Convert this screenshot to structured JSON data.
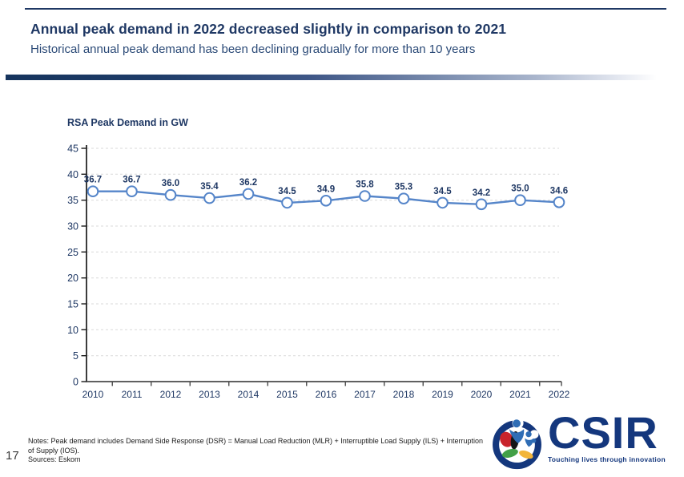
{
  "slide": {
    "title": "Annual peak demand in 2022 decreased slightly in comparison to 2021",
    "subtitle": "Historical annual peak demand has been declining gradually for more than 10 years",
    "page_number": "17"
  },
  "footer": {
    "notes_lines": [
      "Notes: Peak demand includes Demand Side Response (DSR) = Manual Load Reduction (MLR) + Interruptible Load Supply (ILS) + Interruption",
      "of Supply (IOS)."
    ],
    "sources": "Sources: Eskom"
  },
  "logo": {
    "name": "CSIR",
    "tagline": "Touching lives through innovation"
  },
  "chart_data": {
    "type": "line",
    "title": "RSA Peak Demand in GW",
    "categories": [
      "2010",
      "2011",
      "2012",
      "2013",
      "2014",
      "2015",
      "2016",
      "2017",
      "2018",
      "2019",
      "2020",
      "2021",
      "2022"
    ],
    "series": [
      {
        "name": "RSA peak demand (GW)",
        "values": [
          36.7,
          36.7,
          36.0,
          35.4,
          36.2,
          34.5,
          34.9,
          35.8,
          35.3,
          34.5,
          34.2,
          35.0,
          34.6
        ]
      }
    ],
    "data_labels": [
      "36.7",
      "36.7",
      "36.0",
      "35.4",
      "36.2",
      "34.5",
      "34.9",
      "35.8",
      "35.3",
      "34.5",
      "34.2",
      "35.0",
      "34.6"
    ],
    "xlabel": "",
    "ylabel": "",
    "ylim": [
      0,
      45
    ],
    "ytick_step": 5,
    "grid": "horizontal-dashed",
    "legend": "none",
    "marker": "open-circle",
    "line_color": "#5585C9",
    "label_color": "#1F3864"
  },
  "colors": {
    "title_navy": "#1F3864",
    "divider_gradient_start": "#16345D",
    "divider_gradient_end": "#FFFFFF",
    "axis_black": "#262626",
    "gridline_gray": "#D9D9D9",
    "logo_navy": "#14377D",
    "logo_red": "#C8242B",
    "logo_green": "#42A047",
    "logo_yellow": "#F2B53A",
    "logo_figure_blue": "#2F6DB5"
  }
}
